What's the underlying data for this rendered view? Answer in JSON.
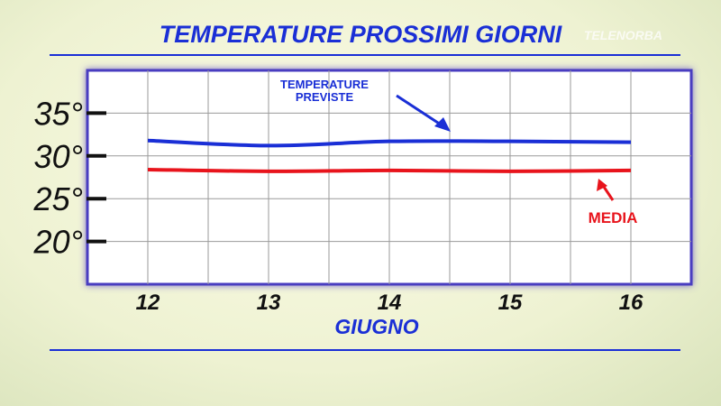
{
  "brand": "TELENORBA",
  "chart_data": {
    "type": "line",
    "title": "TEMPERATURE PROSSIMI GIORNI",
    "x_label": "GIUGNO",
    "categories": [
      "12",
      "13",
      "14",
      "15",
      "16"
    ],
    "series": [
      {
        "name": "TEMPERATURE PREVISTE",
        "color": "#1a2fd6",
        "values": [
          31.8,
          31.2,
          31.7,
          31.7,
          31.6
        ]
      },
      {
        "name": "MEDIA",
        "color": "#e8141c",
        "values": [
          28.4,
          28.2,
          28.3,
          28.2,
          28.3
        ]
      }
    ],
    "ylim": [
      15,
      40
    ],
    "yticks": [
      {
        "value": 20,
        "label": "20°"
      },
      {
        "value": 25,
        "label": "25°"
      },
      {
        "value": 30,
        "label": "30°"
      },
      {
        "value": 35,
        "label": "35°"
      }
    ],
    "grid": true
  }
}
